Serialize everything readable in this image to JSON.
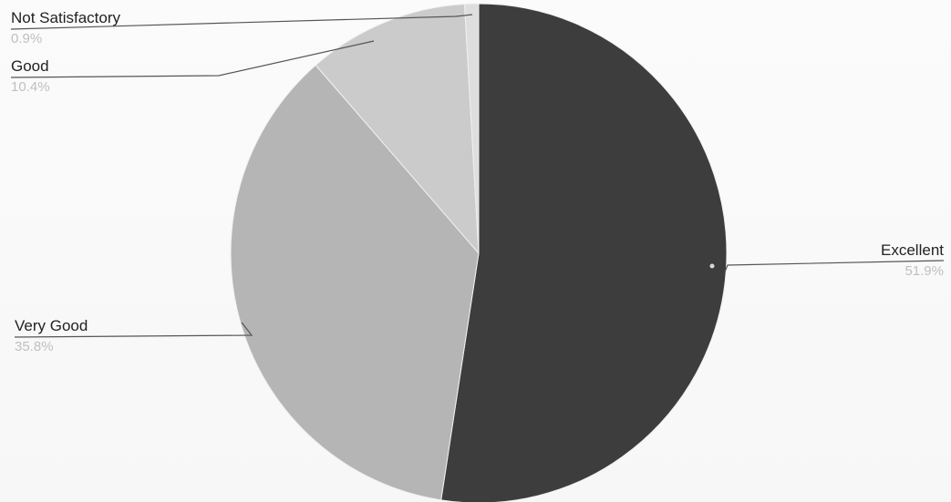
{
  "chart_data": {
    "type": "pie",
    "title": "",
    "legend": "none",
    "start_angle_deg": 0,
    "direction": "clockwise",
    "slices": [
      {
        "label": "Excellent",
        "value": 51.9,
        "value_label": "51.9%",
        "color": "#3d3d3d"
      },
      {
        "label": "Very Good",
        "value": 35.8,
        "value_label": "35.8%",
        "color": "#b5b5b5"
      },
      {
        "label": "Good",
        "value": 10.4,
        "value_label": "10.4%",
        "color": "#cbcbcb"
      },
      {
        "label": "Not Satisfactory",
        "value": 0.9,
        "value_label": "0.9%",
        "color": "#dedede"
      }
    ]
  }
}
